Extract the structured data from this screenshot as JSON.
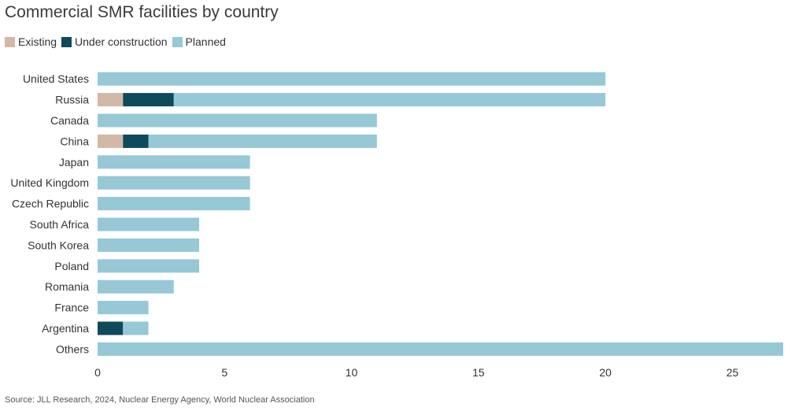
{
  "title": "Commercial SMR facilities by country",
  "source": "Source: JLL Research, 2024, Nuclear Energy Agency, World Nuclear Association",
  "colors": {
    "existing": "#d2b8a6",
    "under_construction": "#0d4a5c",
    "planned": "#96c8d6"
  },
  "legend": [
    {
      "label": "Existing",
      "color": "#d2b8a6"
    },
    {
      "label": "Under construction",
      "color": "#0d4a5c"
    },
    {
      "label": "Planned",
      "color": "#96c8d6"
    }
  ],
  "chart_data": {
    "type": "bar",
    "orientation": "horizontal",
    "stacked": true,
    "title": "Commercial SMR facilities by country",
    "xlim": [
      0,
      27
    ],
    "xticks": [
      0,
      5,
      10,
      15,
      20,
      25
    ],
    "grid": false,
    "legend_position": "top-left",
    "categories": [
      "United States",
      "Russia",
      "Canada",
      "China",
      "Japan",
      "United Kingdom",
      "Czech Republic",
      "South Africa",
      "South Korea",
      "Poland",
      "Romania",
      "France",
      "Argentina",
      "Others"
    ],
    "series": [
      {
        "name": "Existing",
        "color": "#d2b8a6",
        "values": [
          0,
          1,
          0,
          1,
          0,
          0,
          0,
          0,
          0,
          0,
          0,
          0,
          0,
          0
        ]
      },
      {
        "name": "Under construction",
        "color": "#0d4a5c",
        "values": [
          0,
          2,
          0,
          1,
          0,
          0,
          0,
          0,
          0,
          0,
          0,
          0,
          1,
          0
        ]
      },
      {
        "name": "Planned",
        "color": "#96c8d6",
        "values": [
          20,
          17,
          11,
          9,
          6,
          6,
          6,
          4,
          4,
          4,
          3,
          2,
          1,
          27
        ]
      }
    ]
  }
}
